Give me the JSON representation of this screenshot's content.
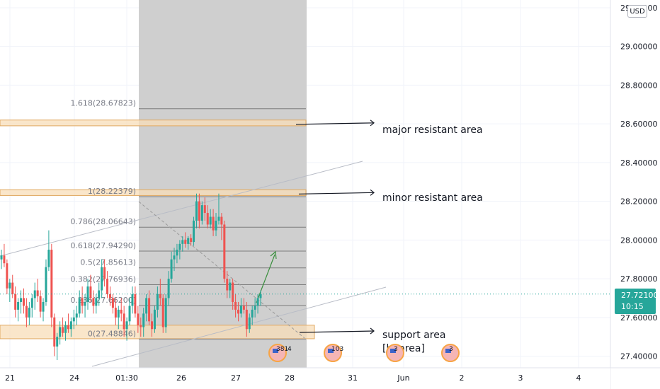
{
  "currency_label": "USD",
  "current_price": {
    "value": "27.72100",
    "countdown": "10:15"
  },
  "colors": {
    "up": "#26a69a",
    "down": "#ef5350",
    "zone": "#f8deb8",
    "shade": "#cfcfcf",
    "arrow": "#388e3c"
  },
  "annotations": [
    {
      "id": "major",
      "text": "major resistant area"
    },
    {
      "id": "minor",
      "text": "minor resistant area"
    },
    {
      "id": "support1",
      "text": "support area"
    },
    {
      "id": "support2",
      "text": "[b’ area]"
    }
  ],
  "events": [
    {
      "num": "381",
      "extra": "4"
    },
    {
      "num": "103",
      "extra": ""
    },
    {
      "num": "3",
      "extra": ""
    },
    {
      "num": "3",
      "extra": ""
    }
  ],
  "chart_data": {
    "type": "candlestick",
    "x_ticks": [
      "21",
      "24",
      "01:30",
      "26",
      "27",
      "28",
      "31",
      "Jun",
      "2",
      "3",
      "4"
    ],
    "y_ticks": [
      "29.20000",
      "29.00000",
      "28.80000",
      "28.60000",
      "28.40000",
      "28.20000",
      "28.00000",
      "27.80000",
      "27.60000",
      "27.40000"
    ],
    "y_tick_values": [
      29.2,
      29.0,
      28.8,
      28.6,
      28.4,
      28.2,
      28.0,
      27.8,
      27.6,
      27.4
    ],
    "ylim": [
      27.34,
      29.24
    ],
    "fib_levels": [
      {
        "label": "1.618(28.67823)",
        "value": 28.67823
      },
      {
        "label": "1(28.22379)",
        "value": 28.22379
      },
      {
        "label": "0.786(28.06643)",
        "value": 28.06643
      },
      {
        "label": "0.618(27.94290)",
        "value": 27.9429
      },
      {
        "label": "0.5(27.85613)",
        "value": 27.85613
      },
      {
        "label": "0.382(27.76936)",
        "value": 27.76936
      },
      {
        "label": "0.236(27.66200)",
        "value": 27.662
      },
      {
        "label": "0(27.48846)",
        "value": 27.48846
      }
    ],
    "zones": [
      {
        "name": "major resistant area",
        "low": 28.59,
        "high": 28.62
      },
      {
        "name": "minor resistant area",
        "low": 28.23,
        "high": 28.26
      },
      {
        "name": "support area",
        "low": 27.49,
        "high": 27.56
      }
    ],
    "current_price": 27.721,
    "candles": [
      [
        27.9,
        27.95,
        27.85,
        27.92
      ],
      [
        27.92,
        27.98,
        27.86,
        27.88
      ],
      [
        27.88,
        27.9,
        27.72,
        27.75
      ],
      [
        27.75,
        27.8,
        27.68,
        27.78
      ],
      [
        27.78,
        27.82,
        27.7,
        27.72
      ],
      [
        27.72,
        27.76,
        27.6,
        27.64
      ],
      [
        27.64,
        27.7,
        27.58,
        27.68
      ],
      [
        27.68,
        27.74,
        27.62,
        27.7
      ],
      [
        27.7,
        27.75,
        27.62,
        27.66
      ],
      [
        27.66,
        27.7,
        27.55,
        27.6
      ],
      [
        27.6,
        27.68,
        27.56,
        27.65
      ],
      [
        27.65,
        27.72,
        27.6,
        27.7
      ],
      [
        27.7,
        27.78,
        27.64,
        27.74
      ],
      [
        27.74,
        27.8,
        27.68,
        27.71
      ],
      [
        27.71,
        27.74,
        27.6,
        27.63
      ],
      [
        27.63,
        27.7,
        27.58,
        27.68
      ],
      [
        27.68,
        27.9,
        27.66,
        27.86
      ],
      [
        27.86,
        28.05,
        27.84,
        27.95
      ],
      [
        27.95,
        27.98,
        27.55,
        27.6
      ],
      [
        27.6,
        27.62,
        27.4,
        27.45
      ],
      [
        27.45,
        27.52,
        27.38,
        27.5
      ],
      [
        27.5,
        27.58,
        27.46,
        27.55
      ],
      [
        27.55,
        27.6,
        27.5,
        27.52
      ],
      [
        27.52,
        27.58,
        27.48,
        27.56
      ],
      [
        27.56,
        27.62,
        27.52,
        27.54
      ],
      [
        27.54,
        27.6,
        27.5,
        27.58
      ],
      [
        27.58,
        27.64,
        27.54,
        27.6
      ],
      [
        27.6,
        27.66,
        27.56,
        27.62
      ],
      [
        27.62,
        27.74,
        27.6,
        27.7
      ],
      [
        27.7,
        27.76,
        27.62,
        27.66
      ],
      [
        27.66,
        27.72,
        27.6,
        27.68
      ],
      [
        27.68,
        27.8,
        27.64,
        27.76
      ],
      [
        27.76,
        27.82,
        27.68,
        27.7
      ],
      [
        27.7,
        27.74,
        27.62,
        27.66
      ],
      [
        27.66,
        27.72,
        27.62,
        27.7
      ],
      [
        27.7,
        27.78,
        27.66,
        27.74
      ],
      [
        27.74,
        27.9,
        27.7,
        27.86
      ],
      [
        27.86,
        27.9,
        27.76,
        27.8
      ],
      [
        27.8,
        27.84,
        27.7,
        27.72
      ],
      [
        27.72,
        27.76,
        27.66,
        27.7
      ],
      [
        27.7,
        27.72,
        27.62,
        27.65
      ],
      [
        27.65,
        27.7,
        27.56,
        27.6
      ],
      [
        27.6,
        27.66,
        27.54,
        27.64
      ],
      [
        27.64,
        27.7,
        27.58,
        27.62
      ],
      [
        27.62,
        27.66,
        27.5,
        27.54
      ],
      [
        27.54,
        27.6,
        27.48,
        27.58
      ],
      [
        27.58,
        27.7,
        27.56,
        27.66
      ],
      [
        27.66,
        27.76,
        27.62,
        27.72
      ],
      [
        27.72,
        27.76,
        27.6,
        27.62
      ],
      [
        27.62,
        27.66,
        27.52,
        27.56
      ],
      [
        27.56,
        27.6,
        27.5,
        27.55
      ],
      [
        27.55,
        27.65,
        27.5,
        27.62
      ],
      [
        27.62,
        27.72,
        27.58,
        27.7
      ],
      [
        27.7,
        27.74,
        27.56,
        27.58
      ],
      [
        27.58,
        27.62,
        27.5,
        27.54
      ],
      [
        27.54,
        27.66,
        27.52,
        27.64
      ],
      [
        27.64,
        27.76,
        27.6,
        27.72
      ],
      [
        27.72,
        27.8,
        27.66,
        27.7
      ],
      [
        27.7,
        27.72,
        27.52,
        27.55
      ],
      [
        27.55,
        27.72,
        27.52,
        27.7
      ],
      [
        27.7,
        27.84,
        27.66,
        27.8
      ],
      [
        27.8,
        27.94,
        27.78,
        27.9
      ],
      [
        27.9,
        27.96,
        27.84,
        27.92
      ],
      [
        27.92,
        27.98,
        27.88,
        27.95
      ],
      [
        27.95,
        28.0,
        27.9,
        27.98
      ],
      [
        27.98,
        28.02,
        27.94,
        28.0
      ],
      [
        28.0,
        28.04,
        27.96,
        27.98
      ],
      [
        27.98,
        28.02,
        27.95,
        28.01
      ],
      [
        28.01,
        28.03,
        27.97,
        27.99
      ],
      [
        27.99,
        28.12,
        27.97,
        28.1
      ],
      [
        28.1,
        28.24,
        28.06,
        28.2
      ],
      [
        28.2,
        28.24,
        28.06,
        28.1
      ],
      [
        28.1,
        28.2,
        28.08,
        28.18
      ],
      [
        28.18,
        28.22,
        28.1,
        28.14
      ],
      [
        28.14,
        28.18,
        28.06,
        28.08
      ],
      [
        28.08,
        28.16,
        28.06,
        28.12
      ],
      [
        28.12,
        28.16,
        28.02,
        28.05
      ],
      [
        28.05,
        28.14,
        28.02,
        28.1
      ],
      [
        28.1,
        28.24,
        28.08,
        28.12
      ],
      [
        28.12,
        28.14,
        28.0,
        28.08
      ],
      [
        28.08,
        28.1,
        27.78,
        27.8
      ],
      [
        27.8,
        27.84,
        27.7,
        27.74
      ],
      [
        27.74,
        27.8,
        27.7,
        27.78
      ],
      [
        27.78,
        27.8,
        27.64,
        27.68
      ],
      [
        27.68,
        27.72,
        27.6,
        27.64
      ],
      [
        27.64,
        27.68,
        27.58,
        27.62
      ],
      [
        27.62,
        27.7,
        27.6,
        27.66
      ],
      [
        27.66,
        27.7,
        27.62,
        27.64
      ],
      [
        27.64,
        27.68,
        27.5,
        27.54
      ],
      [
        27.54,
        27.62,
        27.52,
        27.6
      ],
      [
        27.6,
        27.66,
        27.56,
        27.64
      ],
      [
        27.64,
        27.7,
        27.6,
        27.66
      ],
      [
        27.66,
        27.72,
        27.62,
        27.7
      ],
      [
        27.7,
        27.74,
        27.66,
        27.72
      ]
    ]
  }
}
